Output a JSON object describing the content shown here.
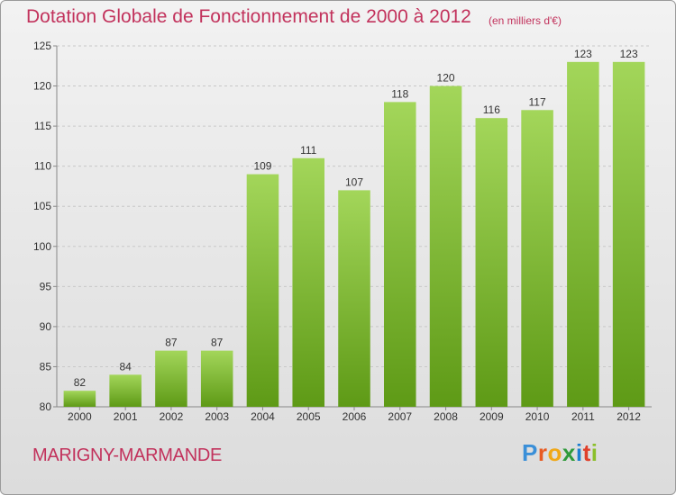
{
  "title": "Dotation Globale de Fonctionnement de 2000 à 2012",
  "subtitle": "(en milliers d'€)",
  "commune": "MARIGNY-MARMANDE",
  "brand": {
    "letters": [
      "P",
      "r",
      "o",
      "x",
      "i",
      "t",
      "i"
    ],
    "colors": [
      "#3a8fd8",
      "#e85b22",
      "#f0a818",
      "#2f9a3a",
      "#1d7fd0",
      "#e0402b",
      "#8bbf2a"
    ]
  },
  "colors": {
    "accent": "#c2325c",
    "bar_top": "#a3d65a",
    "bar_bottom": "#5e9a16"
  },
  "chart_data": {
    "type": "bar",
    "categories": [
      "2000",
      "2001",
      "2002",
      "2003",
      "2004",
      "2005",
      "2006",
      "2007",
      "2008",
      "2009",
      "2010",
      "2011",
      "2012"
    ],
    "values": [
      82,
      84,
      87,
      87,
      109,
      111,
      107,
      118,
      120,
      116,
      117,
      123,
      123
    ],
    "ylim": [
      80,
      125
    ],
    "yticks": [
      80,
      85,
      90,
      95,
      100,
      105,
      110,
      115,
      120,
      125
    ],
    "grid": true,
    "xlabel": "",
    "ylabel": ""
  }
}
